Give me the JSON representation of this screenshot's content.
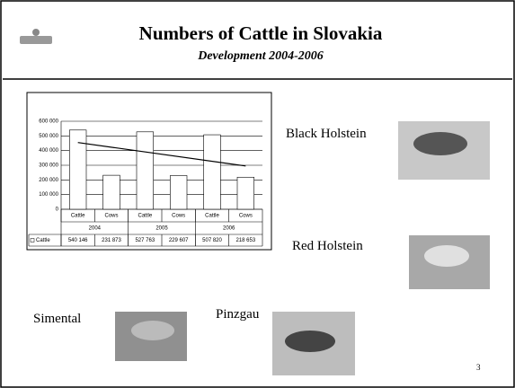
{
  "slide": {
    "title": "Numbers of Cattle in Slovakia",
    "subtitle": "Development 2004-2006",
    "labels": [
      "Black Holstein",
      "Red Holstein",
      "Simental",
      "Pinzgau"
    ],
    "page_number": "3"
  },
  "chart_data": {
    "type": "bar",
    "categories": [
      "Cattle",
      "Cows",
      "Cattle",
      "Cows",
      "Cattle",
      "Cows"
    ],
    "groups": [
      "2004",
      "2005",
      "2006"
    ],
    "series": [
      {
        "name": "Cattle",
        "color": "#ffffff",
        "values": [
          540146,
          231873,
          527763,
          229607,
          507820,
          218653
        ],
        "value_labels": [
          "540 146",
          "231 873",
          "527 763",
          "229 607",
          "507 820",
          "218 653"
        ]
      }
    ],
    "trendline": [
      455000,
      295000
    ],
    "ylim": [
      0,
      600000
    ],
    "yticks": [
      0,
      {
        "value": 100000,
        "label": "100 000"
      },
      {
        "value": 200000,
        "label": "200 000"
      },
      {
        "value": 300000,
        "label": "300 000"
      },
      {
        "value": 400000,
        "label": "400 000"
      },
      {
        "value": 500000,
        "label": "500 000"
      },
      {
        "value": 600000,
        "label": "600 000"
      }
    ],
    "grid": true
  }
}
